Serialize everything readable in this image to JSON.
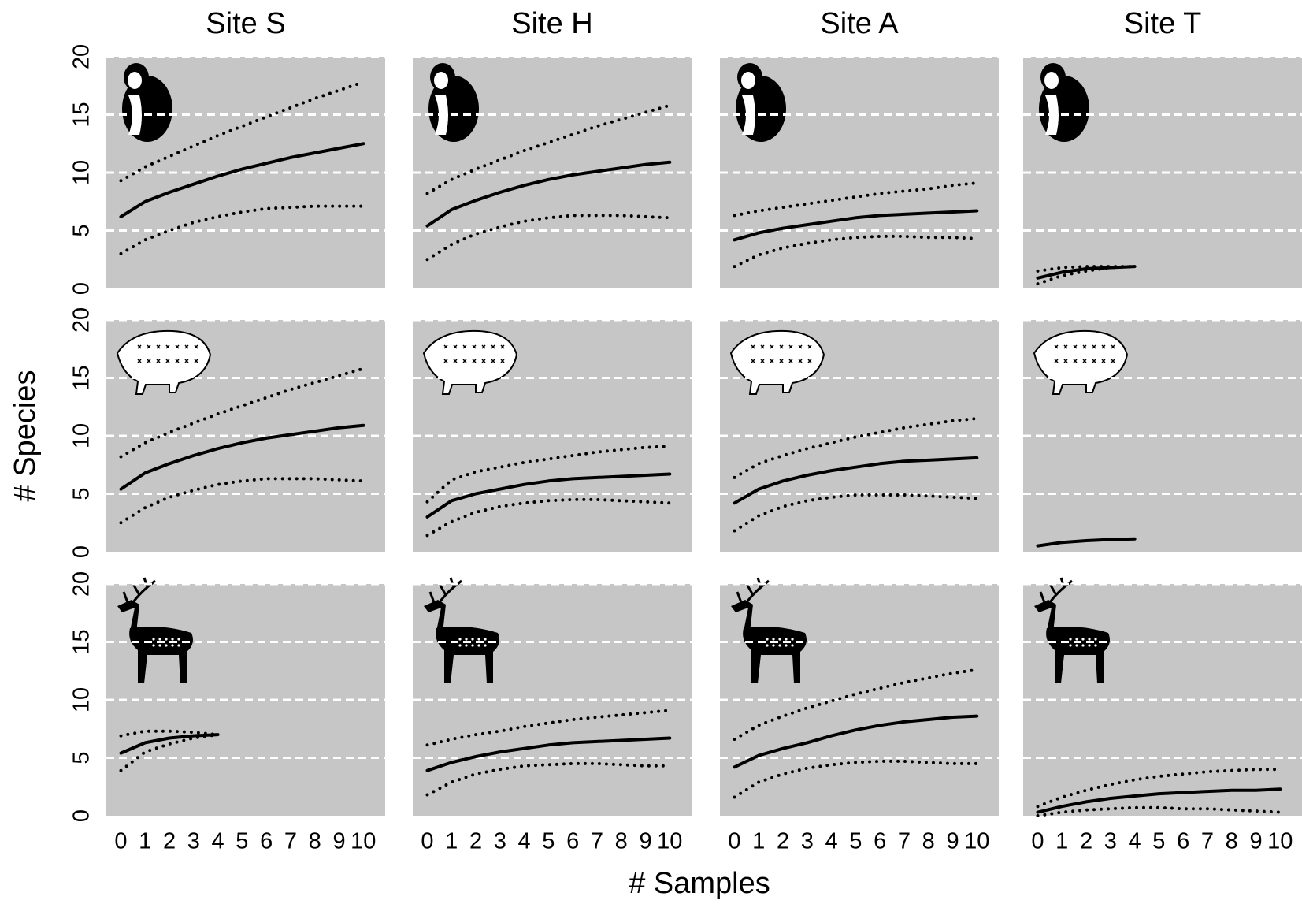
{
  "x_label": "# Samples",
  "y_label": "# Species",
  "chart_data": [
    {
      "type": "line",
      "title": "Site S",
      "x": [
        0,
        1,
        2,
        3,
        4,
        5,
        6,
        7,
        8,
        9,
        10
      ],
      "xlim": [
        -0.6,
        10.9
      ],
      "ylim": [
        0,
        20
      ],
      "yticks": [
        0,
        5,
        10,
        15,
        20
      ],
      "ytick_labels": true,
      "grid": true,
      "series": [
        {
          "color": "#000000",
          "style": "solid",
          "values": [
            6.2,
            7.5,
            8.3,
            9.0,
            9.7,
            10.3,
            10.8,
            11.3,
            11.7,
            12.1,
            12.5
          ]
        },
        {
          "color": "#000000",
          "style": "dotted",
          "values": [
            9.3,
            10.5,
            11.4,
            12.3,
            13.2,
            14.0,
            14.8,
            15.6,
            16.4,
            17.1,
            17.8
          ]
        },
        {
          "color": "#000000",
          "style": "dotted",
          "values": [
            3.0,
            4.2,
            5.0,
            5.7,
            6.2,
            6.6,
            6.9,
            7.0,
            7.1,
            7.1,
            7.1
          ]
        }
      ]
    },
    {
      "type": "line",
      "title": "Site H",
      "x": [
        0,
        1,
        2,
        3,
        4,
        5,
        6,
        7,
        8,
        9,
        10
      ],
      "xlim": [
        -0.6,
        10.9
      ],
      "ylim": [
        0,
        20
      ],
      "yticks": [
        0,
        5,
        10,
        15,
        20
      ],
      "ytick_labels": false,
      "grid": true,
      "series": [
        {
          "color": "#000000",
          "style": "solid",
          "values": [
            5.4,
            6.8,
            7.6,
            8.3,
            8.9,
            9.4,
            9.8,
            10.1,
            10.4,
            10.7,
            10.9
          ]
        },
        {
          "color": "#000000",
          "style": "dotted",
          "values": [
            8.2,
            9.4,
            10.3,
            11.1,
            11.9,
            12.6,
            13.3,
            14.0,
            14.6,
            15.2,
            15.8
          ]
        },
        {
          "color": "#000000",
          "style": "dotted",
          "values": [
            2.5,
            3.8,
            4.7,
            5.3,
            5.8,
            6.1,
            6.3,
            6.3,
            6.3,
            6.2,
            6.1
          ]
        }
      ]
    },
    {
      "type": "line",
      "title": "Site A",
      "x": [
        0,
        1,
        2,
        3,
        4,
        5,
        6,
        7,
        8,
        9,
        10
      ],
      "xlim": [
        -0.6,
        10.9
      ],
      "ylim": [
        0,
        20
      ],
      "yticks": [
        0,
        5,
        10,
        15,
        20
      ],
      "ytick_labels": false,
      "grid": true,
      "series": [
        {
          "color": "#000000",
          "style": "solid",
          "values": [
            4.2,
            4.8,
            5.2,
            5.5,
            5.8,
            6.1,
            6.3,
            6.4,
            6.5,
            6.6,
            6.7
          ]
        },
        {
          "color": "#000000",
          "style": "dotted",
          "values": [
            6.3,
            6.7,
            7.0,
            7.3,
            7.6,
            7.9,
            8.2,
            8.4,
            8.6,
            8.9,
            9.1
          ]
        },
        {
          "color": "#000000",
          "style": "dotted",
          "values": [
            1.9,
            2.9,
            3.5,
            3.9,
            4.2,
            4.4,
            4.5,
            4.5,
            4.4,
            4.4,
            4.3
          ]
        }
      ]
    },
    {
      "type": "line",
      "title": "Site T",
      "x": [
        0,
        1,
        2,
        3,
        4
      ],
      "xlim": [
        -0.6,
        10.9
      ],
      "ylim": [
        0,
        20
      ],
      "yticks": [
        0,
        5,
        10,
        15,
        20
      ],
      "ytick_labels": false,
      "grid": true,
      "series": [
        {
          "color": "#000000",
          "style": "solid",
          "values": [
            0.9,
            1.4,
            1.7,
            1.8,
            1.9
          ]
        },
        {
          "color": "#000000",
          "style": "dotted",
          "values": [
            1.5,
            1.8,
            1.9,
            1.9,
            1.9
          ]
        },
        {
          "color": "#000000",
          "style": "dotted",
          "values": [
            0.4,
            1.1,
            1.5,
            1.8,
            1.9
          ]
        }
      ]
    },
    {
      "type": "line",
      "x": [
        0,
        1,
        2,
        3,
        4,
        5,
        6,
        7,
        8,
        9,
        10
      ],
      "xlim": [
        -0.6,
        10.9
      ],
      "ylim": [
        0,
        20
      ],
      "yticks": [
        0,
        5,
        10,
        15,
        20
      ],
      "ytick_labels": true,
      "grid": true,
      "series": [
        {
          "color": "#000000",
          "style": "solid",
          "values": [
            5.4,
            6.8,
            7.6,
            8.3,
            8.9,
            9.4,
            9.8,
            10.1,
            10.4,
            10.7,
            10.9
          ]
        },
        {
          "color": "#000000",
          "style": "dotted",
          "values": [
            8.2,
            9.4,
            10.3,
            11.1,
            11.9,
            12.6,
            13.3,
            14.0,
            14.6,
            15.2,
            15.8
          ]
        },
        {
          "color": "#000000",
          "style": "dotted",
          "values": [
            2.5,
            3.8,
            4.7,
            5.3,
            5.8,
            6.1,
            6.3,
            6.3,
            6.3,
            6.2,
            6.1
          ]
        }
      ]
    },
    {
      "type": "line",
      "x": [
        0,
        1,
        2,
        3,
        4,
        5,
        6,
        7,
        8,
        9,
        10
      ],
      "xlim": [
        -0.6,
        10.9
      ],
      "ylim": [
        0,
        20
      ],
      "yticks": [
        0,
        5,
        10,
        15,
        20
      ],
      "ytick_labels": false,
      "grid": true,
      "series": [
        {
          "color": "#000000",
          "style": "solid",
          "values": [
            3.0,
            4.4,
            5.0,
            5.4,
            5.8,
            6.1,
            6.3,
            6.4,
            6.5,
            6.6,
            6.7
          ]
        },
        {
          "color": "#000000",
          "style": "dotted",
          "values": [
            4.3,
            6.2,
            6.9,
            7.3,
            7.7,
            8.0,
            8.3,
            8.6,
            8.8,
            9.0,
            9.1
          ]
        },
        {
          "color": "#000000",
          "style": "dotted",
          "values": [
            1.4,
            2.6,
            3.4,
            3.9,
            4.2,
            4.4,
            4.5,
            4.5,
            4.4,
            4.3,
            4.2
          ]
        }
      ]
    },
    {
      "type": "line",
      "x": [
        0,
        1,
        2,
        3,
        4,
        5,
        6,
        7,
        8,
        9,
        10
      ],
      "xlim": [
        -0.6,
        10.9
      ],
      "ylim": [
        0,
        20
      ],
      "yticks": [
        0,
        5,
        10,
        15,
        20
      ],
      "ytick_labels": false,
      "grid": true,
      "series": [
        {
          "color": "#000000",
          "style": "solid",
          "values": [
            4.2,
            5.4,
            6.1,
            6.6,
            7.0,
            7.3,
            7.6,
            7.8,
            7.9,
            8.0,
            8.1
          ]
        },
        {
          "color": "#000000",
          "style": "dotted",
          "values": [
            6.4,
            7.6,
            8.3,
            8.9,
            9.4,
            9.9,
            10.3,
            10.7,
            11.0,
            11.3,
            11.5
          ]
        },
        {
          "color": "#000000",
          "style": "dotted",
          "values": [
            1.8,
            3.1,
            3.9,
            4.4,
            4.7,
            4.9,
            4.9,
            4.9,
            4.8,
            4.7,
            4.6
          ]
        }
      ]
    },
    {
      "type": "line",
      "x": [
        0,
        1,
        2,
        3,
        4
      ],
      "xlim": [
        -0.6,
        10.9
      ],
      "ylim": [
        0,
        20
      ],
      "yticks": [
        0,
        5,
        10,
        15,
        20
      ],
      "ytick_labels": false,
      "grid": true,
      "series": [
        {
          "color": "#000000",
          "style": "solid",
          "values": [
            0.5,
            0.8,
            0.95,
            1.05,
            1.1
          ]
        }
      ]
    },
    {
      "type": "line",
      "x": [
        0,
        1,
        2,
        3,
        4
      ],
      "xlim": [
        -0.6,
        10.9
      ],
      "ylim": [
        0,
        20
      ],
      "yticks": [
        0,
        5,
        10,
        15,
        20
      ],
      "ytick_labels": true,
      "xticks": [
        0,
        1,
        2,
        3,
        4,
        5,
        6,
        7,
        8,
        9,
        10
      ],
      "grid": true,
      "series": [
        {
          "color": "#000000",
          "style": "solid",
          "values": [
            5.4,
            6.3,
            6.7,
            6.9,
            7.0
          ]
        },
        {
          "color": "#000000",
          "style": "dotted",
          "values": [
            6.9,
            7.3,
            7.3,
            7.2,
            7.0
          ]
        },
        {
          "color": "#000000",
          "style": "dotted",
          "values": [
            3.9,
            5.5,
            6.2,
            6.7,
            7.0
          ]
        }
      ]
    },
    {
      "type": "line",
      "x": [
        0,
        1,
        2,
        3,
        4,
        5,
        6,
        7,
        8,
        9,
        10
      ],
      "xlim": [
        -0.6,
        10.9
      ],
      "ylim": [
        0,
        20
      ],
      "yticks": [
        0,
        5,
        10,
        15,
        20
      ],
      "ytick_labels": false,
      "xticks": [
        0,
        1,
        2,
        3,
        4,
        5,
        6,
        7,
        8,
        9,
        10
      ],
      "grid": true,
      "series": [
        {
          "color": "#000000",
          "style": "solid",
          "values": [
            3.9,
            4.6,
            5.1,
            5.5,
            5.8,
            6.1,
            6.3,
            6.4,
            6.5,
            6.6,
            6.7
          ]
        },
        {
          "color": "#000000",
          "style": "dotted",
          "values": [
            6.1,
            6.6,
            7.0,
            7.3,
            7.7,
            8.0,
            8.3,
            8.5,
            8.7,
            8.9,
            9.1
          ]
        },
        {
          "color": "#000000",
          "style": "dotted",
          "values": [
            1.8,
            2.9,
            3.6,
            4.0,
            4.3,
            4.4,
            4.5,
            4.5,
            4.4,
            4.3,
            4.3
          ]
        }
      ]
    },
    {
      "type": "line",
      "x": [
        0,
        1,
        2,
        3,
        4,
        5,
        6,
        7,
        8,
        9,
        10
      ],
      "xlim": [
        -0.6,
        10.9
      ],
      "ylim": [
        0,
        20
      ],
      "yticks": [
        0,
        5,
        10,
        15,
        20
      ],
      "ytick_labels": false,
      "xticks": [
        0,
        1,
        2,
        3,
        4,
        5,
        6,
        7,
        8,
        9,
        10
      ],
      "grid": true,
      "series": [
        {
          "color": "#000000",
          "style": "solid",
          "values": [
            4.2,
            5.2,
            5.8,
            6.3,
            6.9,
            7.4,
            7.8,
            8.1,
            8.3,
            8.5,
            8.6
          ]
        },
        {
          "color": "#000000",
          "style": "dotted",
          "values": [
            6.6,
            7.8,
            8.6,
            9.3,
            9.9,
            10.5,
            11.0,
            11.5,
            11.9,
            12.3,
            12.6
          ]
        },
        {
          "color": "#000000",
          "style": "dotted",
          "values": [
            1.6,
            2.9,
            3.6,
            4.1,
            4.4,
            4.6,
            4.7,
            4.7,
            4.6,
            4.5,
            4.5
          ]
        }
      ]
    },
    {
      "type": "line",
      "x": [
        0,
        1,
        2,
        3,
        4,
        5,
        6,
        7,
        8,
        9,
        10
      ],
      "xlim": [
        -0.6,
        10.9
      ],
      "ylim": [
        0,
        20
      ],
      "yticks": [
        0,
        5,
        10,
        15,
        20
      ],
      "ytick_labels": false,
      "xticks": [
        0,
        1,
        2,
        3,
        4,
        5,
        6,
        7,
        8,
        9,
        10
      ],
      "grid": true,
      "series": [
        {
          "color": "#000000",
          "style": "solid",
          "values": [
            0.3,
            0.8,
            1.2,
            1.5,
            1.7,
            1.9,
            2.0,
            2.1,
            2.2,
            2.2,
            2.3
          ]
        },
        {
          "color": "#000000",
          "style": "dotted",
          "values": [
            0.8,
            1.6,
            2.2,
            2.7,
            3.1,
            3.4,
            3.6,
            3.8,
            3.9,
            4.0,
            4.0
          ]
        },
        {
          "color": "#000000",
          "style": "dotted",
          "values": [
            0.0,
            0.3,
            0.5,
            0.6,
            0.7,
            0.7,
            0.6,
            0.6,
            0.5,
            0.4,
            0.3
          ]
        }
      ]
    }
  ]
}
